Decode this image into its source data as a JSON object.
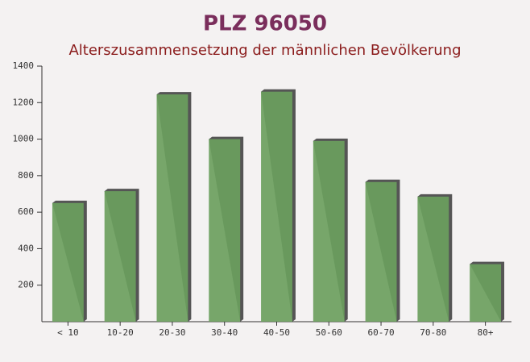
{
  "chart_data": {
    "type": "bar",
    "title": "PLZ 96050",
    "subtitle": "Alterszusammensetzung der männlichen Bevölkerung",
    "categories": [
      "< 10",
      "10-20",
      "20-30",
      "30-40",
      "40-50",
      "50-60",
      "60-70",
      "70-80",
      "80+"
    ],
    "values": [
      650,
      715,
      1245,
      1000,
      1260,
      990,
      765,
      685,
      315
    ],
    "color": "#6b9f5e",
    "ylim": [
      0,
      1400
    ],
    "yticks": [
      200,
      400,
      600,
      800,
      1000,
      1200,
      1400
    ],
    "grid": false
  }
}
